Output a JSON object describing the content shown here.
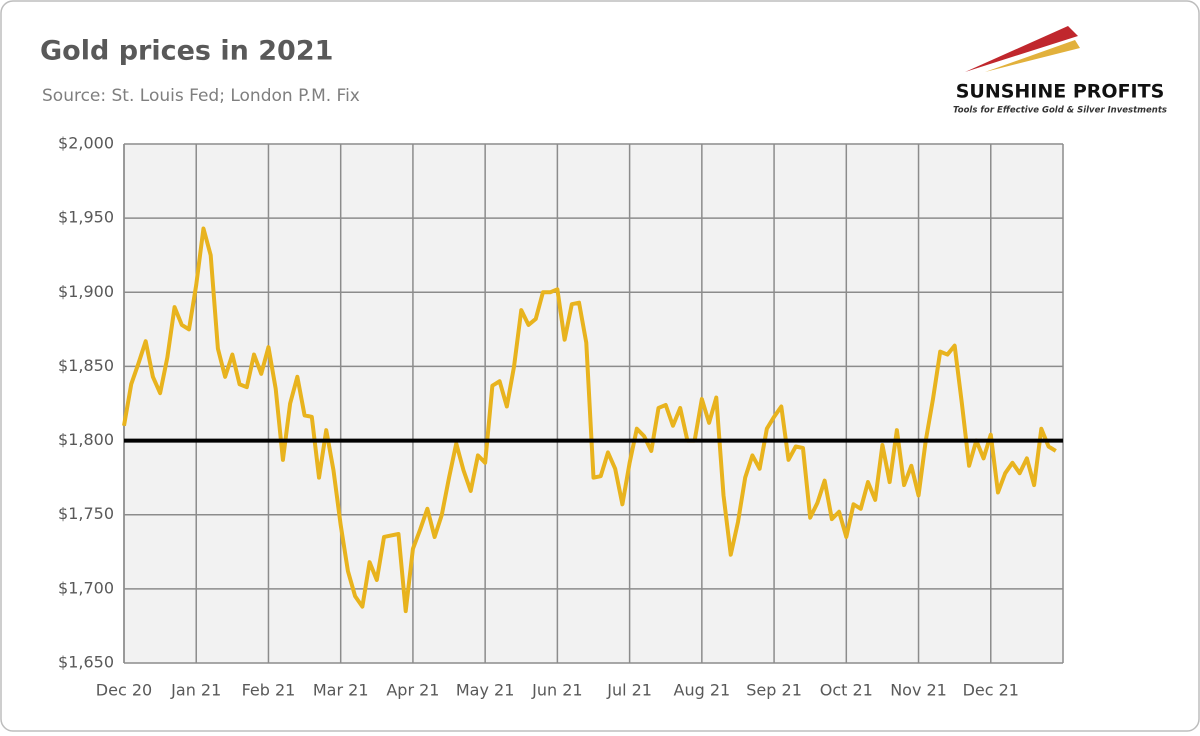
{
  "chart_data": {
    "type": "line",
    "title": "Gold prices in 2021",
    "subtitle": "Source: St. Louis Fed; London P.M. Fix",
    "logo": {
      "name": "SUNSHINE PROFITS",
      "tagline": "Tools for Effective Gold & Silver Investments"
    },
    "categories": [
      "Dec 20",
      null,
      null,
      null,
      null,
      null,
      null,
      null,
      null,
      null,
      "Jan 21",
      null,
      null,
      null,
      null,
      null,
      null,
      null,
      null,
      null,
      "Feb 21",
      null,
      null,
      null,
      null,
      null,
      null,
      null,
      null,
      null,
      "Mar 21",
      null,
      null,
      null,
      null,
      null,
      null,
      null,
      null,
      null,
      "Apr 21",
      null,
      null,
      null,
      null,
      null,
      null,
      null,
      null,
      null,
      "May 21",
      null,
      null,
      null,
      null,
      null,
      null,
      null,
      null,
      null,
      "Jun 21",
      null,
      null,
      null,
      null,
      null,
      null,
      null,
      null,
      null,
      "Jul 21",
      null,
      null,
      null,
      null,
      null,
      null,
      null,
      null,
      null,
      "Aug 21",
      null,
      null,
      null,
      null,
      null,
      null,
      null,
      null,
      null,
      "Sep 21",
      null,
      null,
      null,
      null,
      null,
      null,
      null,
      null,
      null,
      "Oct 21",
      null,
      null,
      null,
      null,
      null,
      null,
      null,
      null,
      null,
      "Nov 21",
      null,
      null,
      null,
      null,
      null,
      null,
      null,
      null,
      null,
      "Dec 21",
      null,
      null,
      null,
      null,
      null,
      null,
      null,
      null,
      null
    ],
    "series": [
      {
        "name": "Gold price",
        "color": "#e8b31e",
        "values": [
          1810,
          1838,
          1852,
          1867,
          1843,
          1832,
          1856,
          1890,
          1878,
          1875,
          1905,
          1943,
          1925,
          1862,
          1843,
          1858,
          1838,
          1836,
          1858,
          1845,
          1863,
          1835,
          1787,
          1825,
          1843,
          1817,
          1816,
          1775,
          1807,
          1780,
          1743,
          1712,
          1695,
          1688,
          1718,
          1706,
          1735,
          1736,
          1737,
          1685,
          1727,
          1740,
          1754,
          1735,
          1750,
          1775,
          1798,
          1780,
          1766,
          1790,
          1785,
          1837,
          1840,
          1823,
          1850,
          1888,
          1878,
          1882,
          1900,
          1900,
          1902,
          1868,
          1892,
          1893,
          1866,
          1775,
          1776,
          1792,
          1781,
          1757,
          1785,
          1808,
          1803,
          1793,
          1822,
          1824,
          1810,
          1822,
          1800,
          1800,
          1828,
          1812,
          1829,
          1763,
          1723,
          1745,
          1775,
          1790,
          1781,
          1808,
          1816,
          1823,
          1787,
          1796,
          1795,
          1748,
          1758,
          1773,
          1747,
          1752,
          1735,
          1757,
          1754,
          1772,
          1760,
          1797,
          1772,
          1807,
          1770,
          1783,
          1763,
          1800,
          1828,
          1860,
          1858,
          1864,
          1825,
          1783,
          1800,
          1788,
          1804,
          1765,
          1778,
          1785,
          1778,
          1788,
          1770,
          1808,
          1796,
          1793
        ]
      }
    ],
    "reference_line": 1800,
    "reference_color": "#000000",
    "ylim": [
      1650,
      2000
    ],
    "yticks": [
      {
        "value": 1650,
        "label": "$1,650"
      },
      {
        "value": 1700,
        "label": "$1,700"
      },
      {
        "value": 1750,
        "label": "$1,750"
      },
      {
        "value": 1800,
        "label": "$1,800"
      },
      {
        "value": 1850,
        "label": "$1,850"
      },
      {
        "value": 1900,
        "label": "$1,900"
      },
      {
        "value": 1950,
        "label": "$1,950"
      },
      {
        "value": 2000,
        "label": "$2,000"
      }
    ],
    "grid": true
  }
}
